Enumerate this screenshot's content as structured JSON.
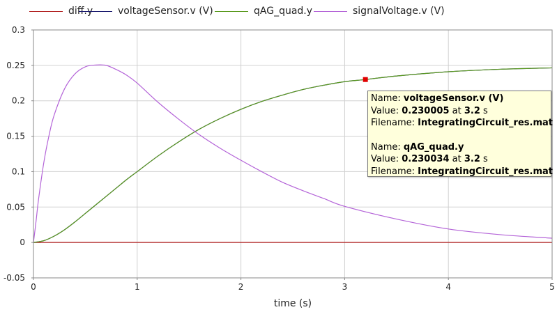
{
  "chart_data": {
    "type": "line",
    "title": "",
    "xlabel": "time (s)",
    "ylabel": "",
    "xlim": [
      0,
      5
    ],
    "ylim": [
      -0.05,
      0.3
    ],
    "xticks": [
      0,
      1,
      2,
      3,
      4,
      5
    ],
    "yticks": [
      -0.05,
      0,
      0.05,
      0.1,
      0.15,
      0.2,
      0.25,
      0.3
    ],
    "xtick_labels": [
      "0",
      "1",
      "2",
      "3",
      "4",
      "5"
    ],
    "ytick_labels": [
      "-0.05",
      "0",
      "0.05",
      "0.1",
      "0.15",
      "0.2",
      "0.25",
      "0.3"
    ],
    "grid": true,
    "legend_position": "top",
    "series": [
      {
        "name": "diff.y",
        "color": "#b22222",
        "x": [
          0,
          5
        ],
        "y": [
          0,
          0
        ]
      },
      {
        "name": "voltageSensor.v (V)",
        "color": "#1a1a6e",
        "x": [
          0,
          0.1,
          0.2,
          0.3,
          0.4,
          0.5,
          0.6,
          0.7,
          0.8,
          0.9,
          1.0,
          1.2,
          1.4,
          1.6,
          1.8,
          2.0,
          2.2,
          2.4,
          2.6,
          2.8,
          3.0,
          3.2,
          3.5,
          4.0,
          4.5,
          5.0
        ],
        "y": [
          0,
          0.0025,
          0.009,
          0.018,
          0.029,
          0.041,
          0.053,
          0.065,
          0.077,
          0.089,
          0.1,
          0.122,
          0.142,
          0.16,
          0.175,
          0.188,
          0.199,
          0.208,
          0.216,
          0.222,
          0.227,
          0.230005,
          0.235,
          0.241,
          0.2445,
          0.2465
        ]
      },
      {
        "name": "qAG_quad.y",
        "color": "#5a9a1e",
        "x": [
          0,
          0.1,
          0.2,
          0.3,
          0.4,
          0.5,
          0.6,
          0.7,
          0.8,
          0.9,
          1.0,
          1.2,
          1.4,
          1.6,
          1.8,
          2.0,
          2.2,
          2.4,
          2.6,
          2.8,
          3.0,
          3.2,
          3.5,
          4.0,
          4.5,
          5.0
        ],
        "y": [
          0,
          0.0025,
          0.009,
          0.018,
          0.029,
          0.041,
          0.053,
          0.065,
          0.077,
          0.089,
          0.1,
          0.122,
          0.142,
          0.16,
          0.175,
          0.188,
          0.199,
          0.208,
          0.216,
          0.222,
          0.227,
          0.230034,
          0.235,
          0.241,
          0.2445,
          0.2465
        ]
      },
      {
        "name": "signalVoltage.v (V)",
        "color": "#b464d8",
        "x": [
          0,
          0.025,
          0.05,
          0.1,
          0.15,
          0.2,
          0.3,
          0.4,
          0.5,
          0.6,
          0.7,
          0.8,
          0.9,
          1.0,
          1.2,
          1.4,
          1.6,
          1.8,
          2.0,
          2.2,
          2.4,
          2.6,
          2.8,
          3.0,
          3.5,
          4.0,
          4.5,
          5.0
        ],
        "y": [
          0,
          0.03,
          0.062,
          0.113,
          0.151,
          0.18,
          0.217,
          0.238,
          0.248,
          0.2505,
          0.25,
          0.244,
          0.236,
          0.225,
          0.198,
          0.174,
          0.152,
          0.133,
          0.116,
          0.1,
          0.085,
          0.073,
          0.062,
          0.051,
          0.033,
          0.019,
          0.011,
          0.006
        ]
      }
    ],
    "marker": {
      "x": 3.2,
      "y": 0.230005,
      "color": "#e00000"
    }
  },
  "tooltip": {
    "entries": [
      {
        "name_label": "Name:",
        "name_value": "voltageSensor.v (V)",
        "value_label": "Value:",
        "value": "0.230005",
        "at_label": "at",
        "time": "3.2",
        "unit": "s",
        "file_label": "Filename:",
        "file_value": "IntegratingCircuit_res.mat"
      },
      {
        "name_label": "Name:",
        "name_value": "qAG_quad.y",
        "value_label": "Value:",
        "value": "0.230034",
        "at_label": "at",
        "time": "3.2",
        "unit": "s",
        "file_label": "Filename:",
        "file_value": "IntegratingCircuit_res.mat"
      }
    ]
  }
}
